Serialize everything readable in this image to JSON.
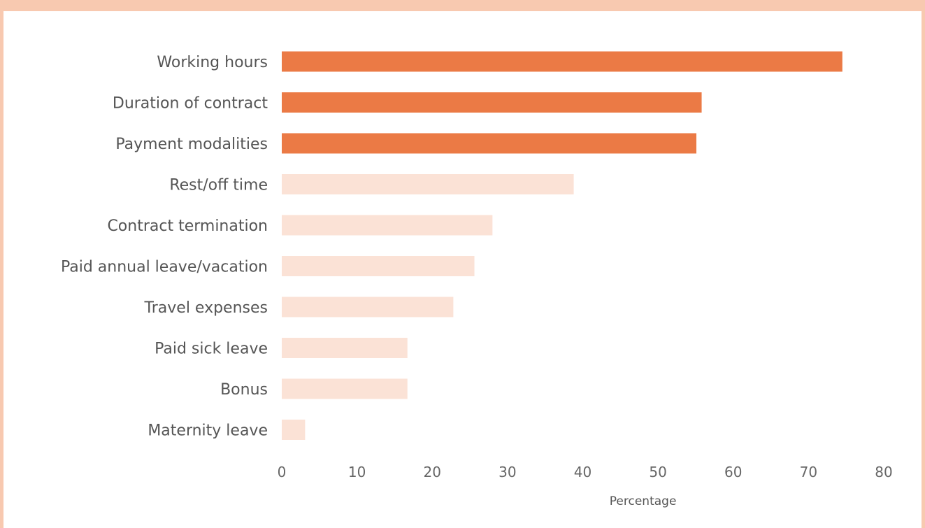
{
  "chart_data": {
    "type": "bar",
    "orientation": "horizontal",
    "categories": [
      "Working hours",
      "Duration of contract",
      "Payment modalities",
      "Rest/off time",
      "Contract termination",
      "Paid annual leave/vacation",
      "Travel expenses",
      "Paid sick leave",
      "Bonus",
      "Maternity leave"
    ],
    "values": [
      74.5,
      55.8,
      55.1,
      38.8,
      28.0,
      25.6,
      22.8,
      16.7,
      16.7,
      3.1
    ],
    "highlighted": [
      true,
      true,
      true,
      false,
      false,
      false,
      false,
      false,
      false,
      false
    ],
    "xlabel": "Percentage",
    "ylabel": "",
    "xlim": [
      0,
      80
    ],
    "xticks": [
      0,
      10,
      20,
      30,
      40,
      50,
      60,
      70,
      80
    ],
    "grid": false,
    "colors": {
      "highlight": "#eb7a45",
      "normal": "#fbe2d6",
      "frame": "#f8c9b0"
    }
  }
}
